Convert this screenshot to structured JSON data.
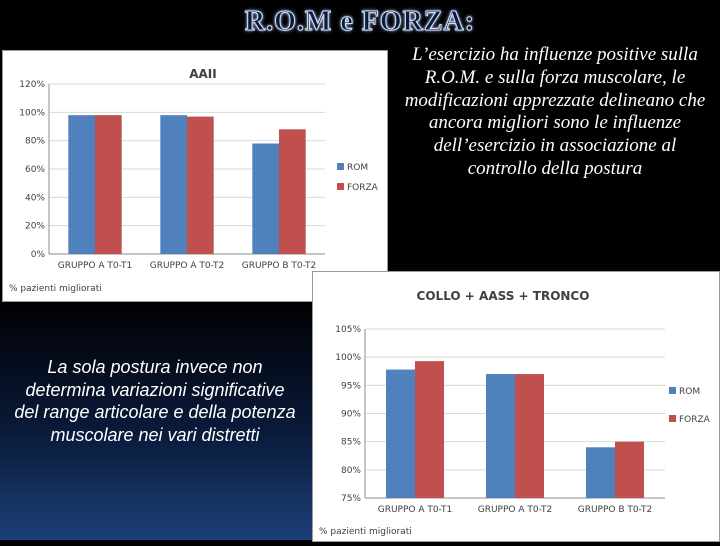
{
  "title": "R.O.M e FORZA:",
  "right_text": "L’esercizio ha influenze positive sulla R.O.M. e sulla forza muscolare, le modificazioni apprezzate delineano che ancora migliori sono le influenze dell’esercizio in associazione al controllo della postura",
  "left_text": "La sola postura invece non determina variazioni significative del range articolare e della potenza muscolare nei vari distretti",
  "colors": {
    "rom": "#4f81bd",
    "forza": "#c0504d",
    "grid": "#d9d9d9"
  },
  "chart_data": [
    {
      "type": "bar",
      "title": "AAII",
      "categories": [
        "GRUPPO A T0-T1",
        "GRUPPO A T0-T2",
        "GRUPPO B T0-T2"
      ],
      "series": [
        {
          "name": "ROM",
          "values": [
            98,
            98,
            78
          ]
        },
        {
          "name": "FORZA",
          "values": [
            98,
            97,
            88
          ]
        }
      ],
      "ylim": [
        0,
        120
      ],
      "yticks": [
        "0%",
        "20%",
        "40%",
        "60%",
        "80%",
        "100%",
        "120%"
      ],
      "xlabel": "% pazienti migliorati",
      "ylabel": "",
      "legend": "right",
      "grid": true
    },
    {
      "type": "bar",
      "title": "COLLO + AASS + TRONCO",
      "categories": [
        "GRUPPO A T0-T1",
        "GRUPPO A T0-T2",
        "GRUPPO B T0-T2"
      ],
      "series": [
        {
          "name": "ROM",
          "values": [
            97.8,
            97,
            84
          ]
        },
        {
          "name": "FORZA",
          "values": [
            99.3,
            97,
            85
          ]
        }
      ],
      "ylim": [
        75,
        105
      ],
      "yticks": [
        "75%",
        "80%",
        "85%",
        "90%",
        "95%",
        "100%",
        "105%"
      ],
      "xlabel": "% pazienti migliorati",
      "ylabel": "",
      "legend": "right",
      "grid": true
    }
  ]
}
